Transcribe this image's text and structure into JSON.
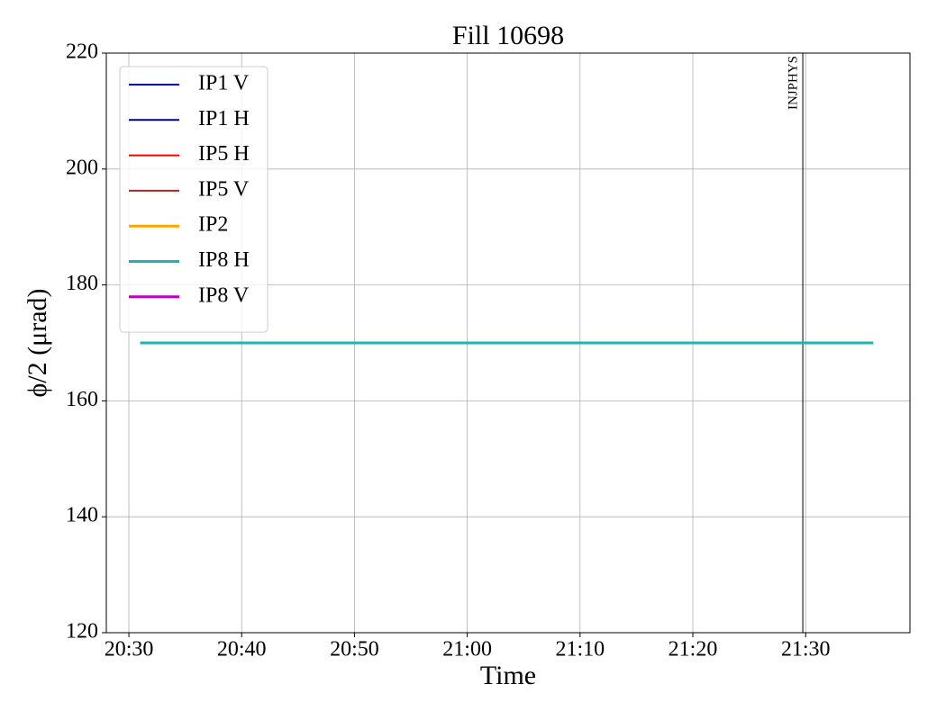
{
  "chart_data": {
    "type": "line",
    "title": "Fill 10698",
    "xlabel": "Time",
    "ylabel": "ϕ/2 (μrad)",
    "x": [
      "20:31",
      "21:36"
    ],
    "series": [
      {
        "name": "IP1 V",
        "color": "#0000ff",
        "values": [
          null,
          null
        ]
      },
      {
        "name": "IP1 H",
        "color": "#00008b",
        "values": [
          null,
          null
        ]
      },
      {
        "name": "IP5 H",
        "color": "#ff0000",
        "values": [
          null,
          null
        ]
      },
      {
        "name": "IP5 V",
        "color": "#b22222",
        "values": [
          null,
          null
        ]
      },
      {
        "name": "IP2",
        "color": "#ffa500",
        "values": [
          null,
          null
        ]
      },
      {
        "name": "IP8 H",
        "color": "#1ab5b5",
        "values": [
          170,
          170
        ]
      },
      {
        "name": "IP8 V",
        "color": "#c000c0",
        "values": [
          null,
          null
        ]
      }
    ],
    "xlim": [
      "20:28",
      "21:39:15"
    ],
    "xticks": [
      "20:30",
      "20:40",
      "20:50",
      "21:00",
      "21:10",
      "21:20",
      "21:30"
    ],
    "ylim": [
      120,
      220
    ],
    "yticks": [
      120,
      140,
      160,
      180,
      200,
      220
    ],
    "grid": true,
    "legend": "upper left",
    "annotations": [
      {
        "x": "21:29:45",
        "label": "INJPHYS"
      }
    ]
  }
}
